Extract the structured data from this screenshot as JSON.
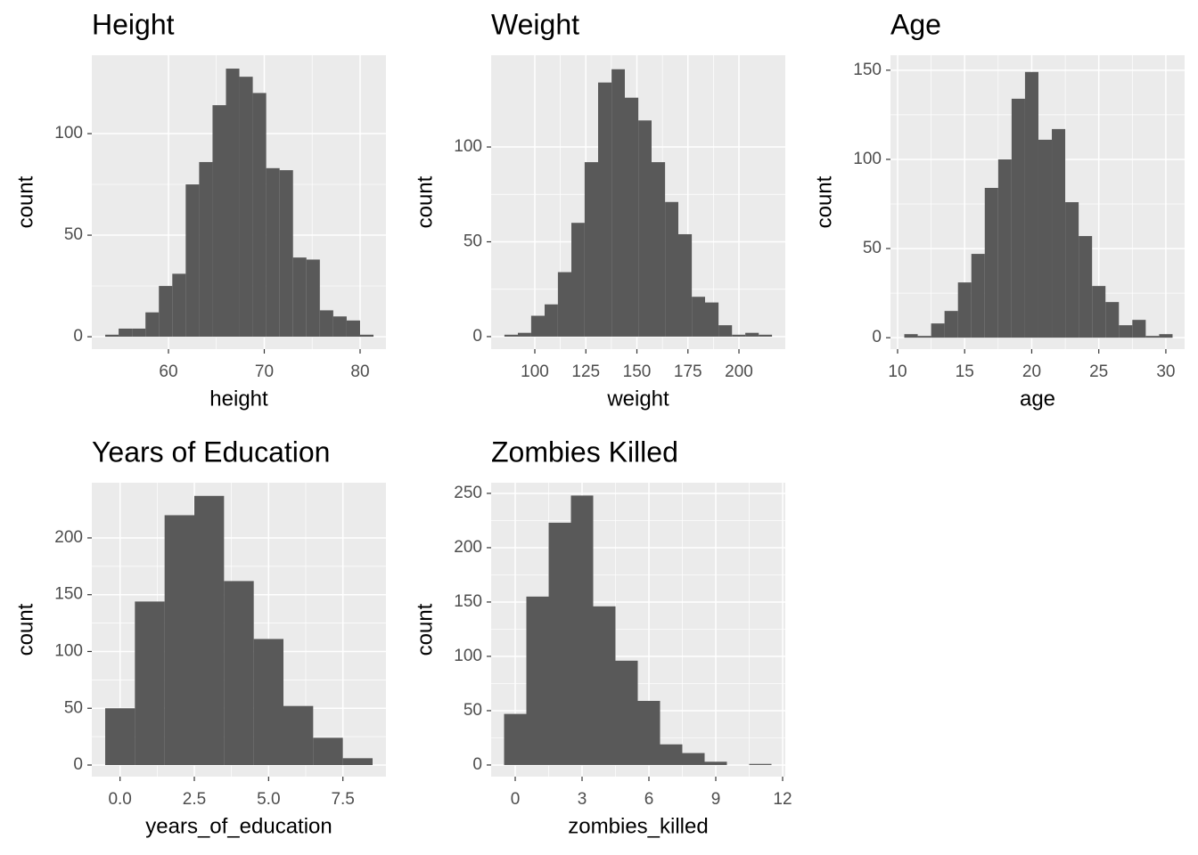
{
  "chart_data": [
    {
      "type": "histogram",
      "title": "Height",
      "x_label": "height",
      "y_label": "count",
      "color": "#595959",
      "grid": true,
      "bins": [
        53.4,
        54.8,
        56.2,
        57.6,
        59.0,
        60.4,
        61.8,
        63.2,
        64.6,
        66.0,
        67.4,
        68.8,
        70.2,
        71.6,
        73.0,
        74.4,
        75.8,
        77.2,
        78.6,
        80.0,
        81.4
      ],
      "values": [
        1,
        4,
        4,
        12,
        25,
        31,
        75,
        86,
        114,
        132,
        128,
        120,
        83,
        82,
        39,
        38,
        13,
        10,
        8,
        1
      ],
      "xlim": [
        52.0,
        82.7
      ],
      "ylim": [
        -6.1,
        138.6
      ],
      "xticks": [
        60,
        70,
        80
      ],
      "yticks": [
        0,
        50,
        100
      ]
    },
    {
      "type": "histogram",
      "title": "Weight",
      "x_label": "weight",
      "y_label": "count",
      "color": "#595959",
      "grid": true,
      "bins": [
        85.1,
        91.7,
        98.2,
        104.8,
        111.3,
        117.9,
        124.4,
        131.0,
        137.6,
        144.1,
        150.7,
        157.2,
        163.8,
        170.3,
        176.9,
        183.4,
        190.0,
        196.6,
        203.1,
        209.7,
        216.2
      ],
      "values": [
        1,
        2,
        11,
        17,
        34,
        60,
        92,
        134,
        141,
        126,
        114,
        92,
        71,
        54,
        21,
        18,
        6,
        1,
        2,
        1
      ],
      "xlim": [
        78.6,
        222.7
      ],
      "ylim": [
        -6.6,
        148.4
      ],
      "xticks": [
        100,
        125,
        150,
        175,
        200
      ],
      "yticks": [
        0,
        50,
        100
      ]
    },
    {
      "type": "histogram",
      "title": "Age",
      "x_label": "age",
      "y_label": "count",
      "color": "#595959",
      "grid": true,
      "bins": [
        10.5,
        11.5,
        12.5,
        13.5,
        14.5,
        15.5,
        16.5,
        17.5,
        18.5,
        19.5,
        20.5,
        21.5,
        22.5,
        23.5,
        24.5,
        25.5,
        26.5,
        27.5,
        28.5,
        29.5,
        30.5
      ],
      "values": [
        2,
        1,
        8,
        15,
        31,
        47,
        84,
        100,
        134,
        149,
        111,
        117,
        76,
        57,
        29,
        20,
        7,
        10,
        1,
        2
      ],
      "xlim": [
        9.47,
        31.4
      ],
      "ylim": [
        -6.4,
        158.4
      ],
      "xticks": [
        10,
        15,
        20,
        25,
        30
      ],
      "yticks": [
        0,
        50,
        100,
        150
      ]
    },
    {
      "type": "histogram",
      "title": "Years of Education",
      "x_label": "years_of_education",
      "y_label": "count",
      "color": "#595959",
      "grid": true,
      "bins": [
        -0.5,
        0.5,
        1.5,
        2.5,
        3.5,
        4.5,
        5.5,
        6.5,
        7.5,
        8.5
      ],
      "values": [
        50,
        144,
        220,
        237,
        162,
        111,
        52,
        24,
        6
      ],
      "xlim": [
        -0.95,
        8.95
      ],
      "ylim": [
        -10.2,
        248.6
      ],
      "xticks": [
        {
          "value": 0,
          "label": "0.0"
        },
        2.5,
        {
          "value": 5,
          "label": "5.0"
        },
        7.5
      ],
      "yticks": [
        0,
        50,
        100,
        150,
        200
      ]
    },
    {
      "type": "histogram",
      "title": "Zombies Killed",
      "x_label": "zombies_killed",
      "y_label": "count",
      "color": "#595959",
      "grid": true,
      "bins": [
        -0.5,
        0.5,
        1.5,
        2.5,
        3.5,
        4.5,
        5.5,
        6.5,
        7.5,
        8.5,
        9.5,
        10.5,
        11.5
      ],
      "values": [
        47,
        155,
        223,
        248,
        146,
        96,
        59,
        19,
        11,
        3,
        0,
        1
      ],
      "xlim": [
        -1.08,
        12.12
      ],
      "ylim": [
        -10.7,
        259.8
      ],
      "xticks": [
        0,
        3,
        6,
        9,
        12
      ],
      "yticks": [
        0,
        50,
        100,
        150,
        200,
        250
      ]
    }
  ]
}
